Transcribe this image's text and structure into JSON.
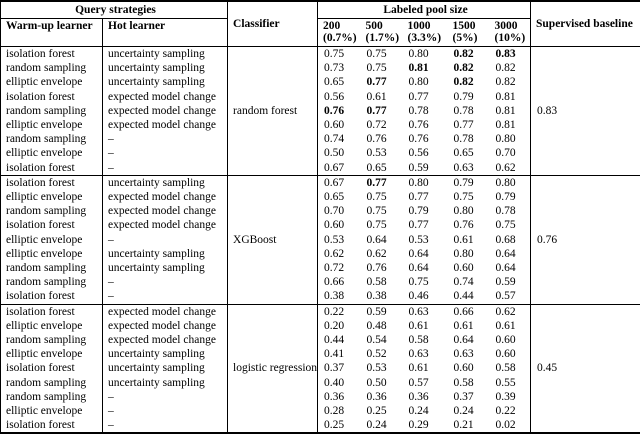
{
  "header": {
    "query_strategies": "Query strategies",
    "warmup": "Warm-up learner",
    "hot": "Hot learner",
    "classifier": "Classifier",
    "pool_size": "Labeled pool size",
    "pool_cols": [
      {
        "size": "200",
        "pct": "(0.7%)"
      },
      {
        "size": "500",
        "pct": "(1.7%)"
      },
      {
        "size": "1000",
        "pct": "(3.3%)"
      },
      {
        "size": "1500",
        "pct": "(5%)"
      },
      {
        "size": "3000",
        "pct": "(10%)"
      }
    ],
    "baseline": "Supervised baseline"
  },
  "blocks": [
    {
      "classifier": "random forest",
      "baseline": "0.83",
      "rows": [
        {
          "warmup": "isolation forest",
          "hot": "uncertainty sampling",
          "values": [
            "0.75",
            "0.75",
            "0.80",
            "0.82",
            "0.83"
          ],
          "bold": [
            3,
            4
          ]
        },
        {
          "warmup": "random sampling",
          "hot": "uncertainty sampling",
          "values": [
            "0.73",
            "0.75",
            "0.81",
            "0.82",
            "0.82"
          ],
          "bold": [
            2,
            3
          ]
        },
        {
          "warmup": "elliptic envelope",
          "hot": "uncertainty sampling",
          "values": [
            "0.65",
            "0.77",
            "0.80",
            "0.82",
            "0.82"
          ],
          "bold": [
            1,
            3
          ]
        },
        {
          "warmup": "isolation forest",
          "hot": "expected model change",
          "values": [
            "0.56",
            "0.61",
            "0.77",
            "0.79",
            "0.81"
          ],
          "bold": []
        },
        {
          "warmup": "random sampling",
          "hot": "expected model change",
          "values": [
            "0.76",
            "0.77",
            "0.78",
            "0.78",
            "0.81"
          ],
          "bold": [
            0,
            1
          ]
        },
        {
          "warmup": "elliptic envelope",
          "hot": "expected model change",
          "values": [
            "0.60",
            "0.72",
            "0.76",
            "0.77",
            "0.81"
          ],
          "bold": []
        },
        {
          "warmup": "random sampling",
          "hot": "–",
          "values": [
            "0.74",
            "0.76",
            "0.76",
            "0.78",
            "0.80"
          ],
          "bold": []
        },
        {
          "warmup": "elliptic envelope",
          "hot": "–",
          "values": [
            "0.50",
            "0.53",
            "0.56",
            "0.65",
            "0.70"
          ],
          "bold": []
        },
        {
          "warmup": "isolation forest",
          "hot": "–",
          "values": [
            "0.67",
            "0.65",
            "0.59",
            "0.63",
            "0.62"
          ],
          "bold": []
        }
      ]
    },
    {
      "classifier": "XGBoost",
      "baseline": "0.76",
      "rows": [
        {
          "warmup": "isolation forest",
          "hot": "uncertainty sampling",
          "values": [
            "0.67",
            "0.77",
            "0.80",
            "0.79",
            "0.80"
          ],
          "bold": [
            1
          ]
        },
        {
          "warmup": "elliptic envelope",
          "hot": "expected model change",
          "values": [
            "0.65",
            "0.75",
            "0.77",
            "0.75",
            "0.79"
          ],
          "bold": []
        },
        {
          "warmup": "random sampling",
          "hot": "expected model change",
          "values": [
            "0.70",
            "0.75",
            "0.79",
            "0.80",
            "0.78"
          ],
          "bold": []
        },
        {
          "warmup": "isolation forest",
          "hot": "expected model change",
          "values": [
            "0.60",
            "0.75",
            "0.77",
            "0.76",
            "0.75"
          ],
          "bold": []
        },
        {
          "warmup": "elliptic envelope",
          "hot": "–",
          "values": [
            "0.53",
            "0.64",
            "0.53",
            "0.61",
            "0.68"
          ],
          "bold": []
        },
        {
          "warmup": "elliptic envelope",
          "hot": "uncertainty sampling",
          "values": [
            "0.62",
            "0.62",
            "0.64",
            "0.80",
            "0.64"
          ],
          "bold": []
        },
        {
          "warmup": "random sampling",
          "hot": "uncertainty sampling",
          "values": [
            "0.72",
            "0.76",
            "0.64",
            "0.60",
            "0.64"
          ],
          "bold": []
        },
        {
          "warmup": "random sampling",
          "hot": "–",
          "values": [
            "0.66",
            "0.58",
            "0.75",
            "0.74",
            "0.59"
          ],
          "bold": []
        },
        {
          "warmup": "isolation forest",
          "hot": "–",
          "values": [
            "0.38",
            "0.38",
            "0.46",
            "0.44",
            "0.57"
          ],
          "bold": []
        }
      ]
    },
    {
      "classifier": "logistic regression",
      "baseline": "0.45",
      "rows": [
        {
          "warmup": "isolation forest",
          "hot": "expected model change",
          "values": [
            "0.22",
            "0.59",
            "0.63",
            "0.66",
            "0.62"
          ],
          "bold": []
        },
        {
          "warmup": "elliptic envelope",
          "hot": "expected model change",
          "values": [
            "0.20",
            "0.48",
            "0.61",
            "0.61",
            "0.61"
          ],
          "bold": []
        },
        {
          "warmup": "random sampling",
          "hot": "expected model change",
          "values": [
            "0.44",
            "0.54",
            "0.58",
            "0.64",
            "0.60"
          ],
          "bold": []
        },
        {
          "warmup": "elliptic envelope",
          "hot": "uncertainty sampling",
          "values": [
            "0.41",
            "0.52",
            "0.63",
            "0.63",
            "0.60"
          ],
          "bold": []
        },
        {
          "warmup": "isolation forest",
          "hot": "uncertainty sampling",
          "values": [
            "0.37",
            "0.53",
            "0.61",
            "0.60",
            "0.58"
          ],
          "bold": []
        },
        {
          "warmup": "random sampling",
          "hot": "uncertainty sampling",
          "values": [
            "0.40",
            "0.50",
            "0.57",
            "0.58",
            "0.55"
          ],
          "bold": []
        },
        {
          "warmup": "random sampling",
          "hot": "–",
          "values": [
            "0.36",
            "0.36",
            "0.36",
            "0.37",
            "0.39"
          ],
          "bold": []
        },
        {
          "warmup": "elliptic envelope",
          "hot": "–",
          "values": [
            "0.28",
            "0.25",
            "0.24",
            "0.24",
            "0.22"
          ],
          "bold": []
        },
        {
          "warmup": "isolation forest",
          "hot": "–",
          "values": [
            "0.25",
            "0.24",
            "0.29",
            "0.21",
            "0.02"
          ],
          "bold": []
        }
      ]
    }
  ]
}
